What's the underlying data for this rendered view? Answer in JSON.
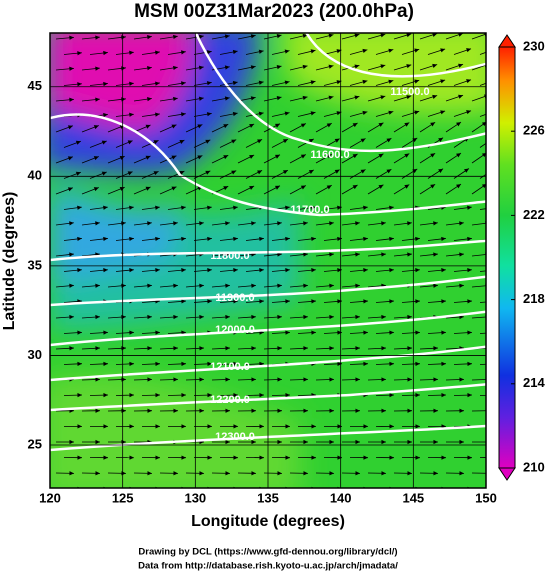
{
  "title": "MSM 00Z31Mar2023 (200.0hPa)",
  "x_axis": {
    "label": "Longitude (degrees)",
    "lim": [
      120,
      150
    ],
    "ticks": [
      120,
      125,
      130,
      135,
      140,
      145,
      150
    ]
  },
  "y_axis": {
    "label": "Latitude  (degrees)",
    "lim": [
      22.6,
      48
    ],
    "ticks": [
      25,
      30,
      35,
      40,
      45
    ]
  },
  "colorbar": {
    "lim": [
      210,
      230
    ],
    "ticks": [
      210,
      214,
      218,
      222,
      226,
      230
    ]
  },
  "contour_labels": [
    "11500.0",
    "11600.0",
    "11700.0",
    "11800.0",
    "11900.0",
    "12000.0",
    "12100.0",
    "12200.0",
    "12300.0"
  ],
  "footer": [
    "Drawing by DCL (https://www.gfd-dennou.org/library/dcl/)",
    "Data from http://database.rish.kyoto-u.ac.jp/arch/jmadata/"
  ]
}
